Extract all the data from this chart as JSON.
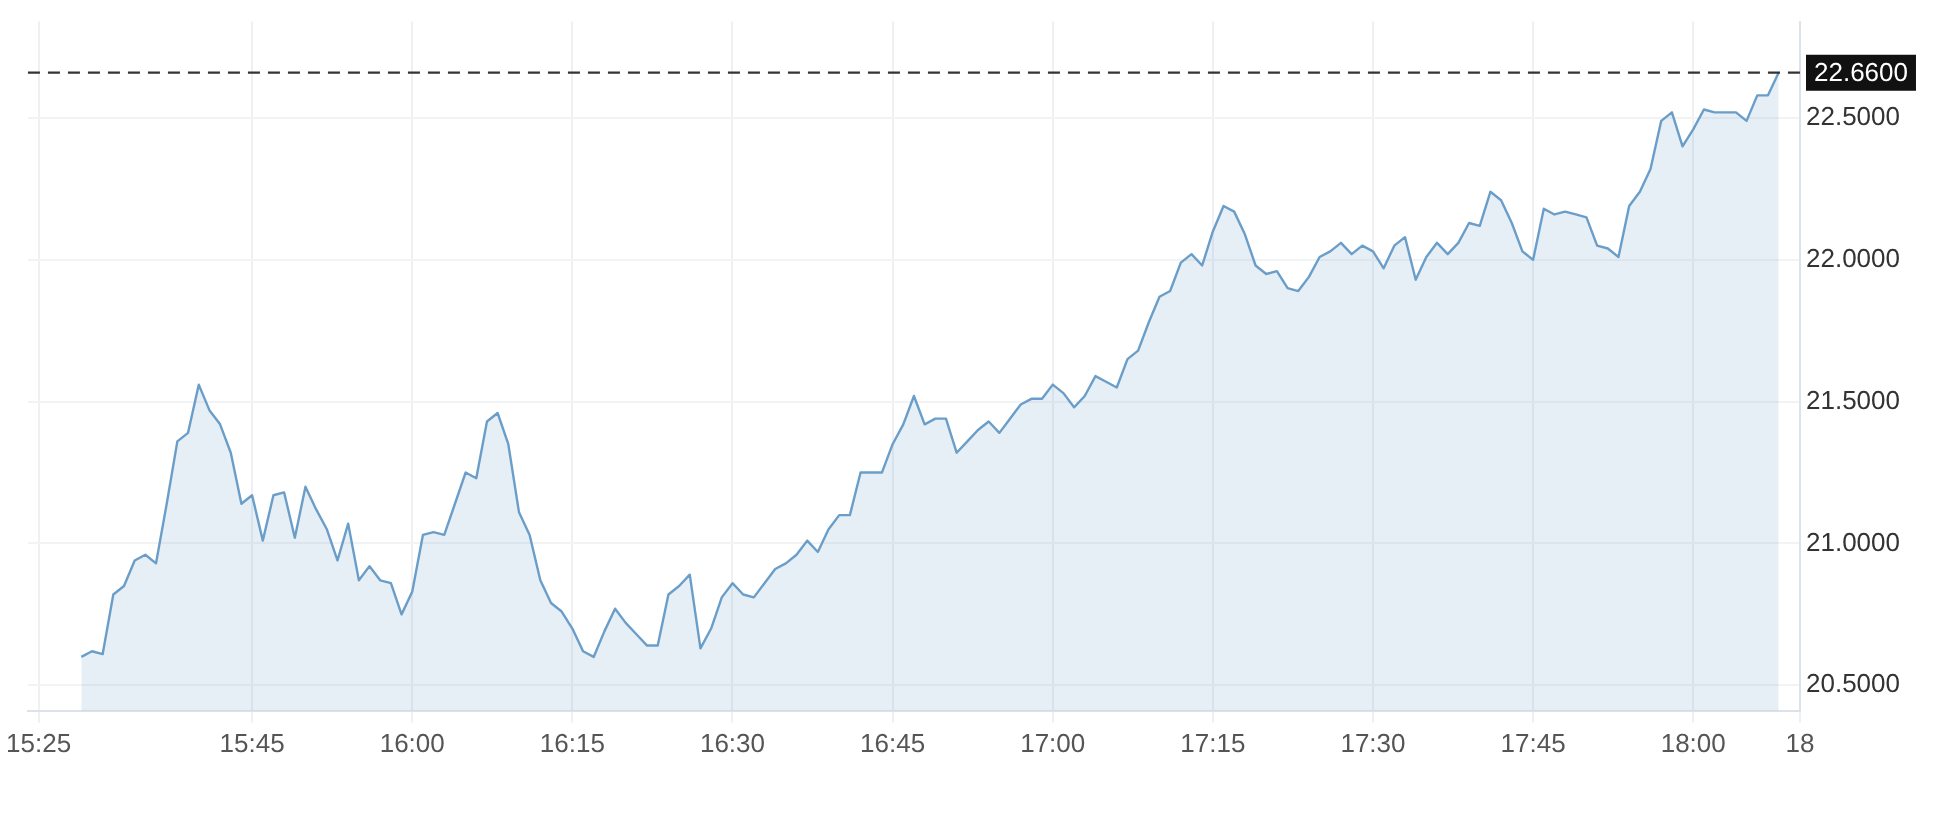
{
  "chart_data": {
    "type": "area",
    "series": [
      {
        "color": "#6a9ec9",
        "x": [
          15.4833,
          15.5,
          15.5167,
          15.5333,
          15.55,
          15.5667,
          15.5833,
          15.6,
          15.6167,
          15.6333,
          15.65,
          15.6667,
          15.6833,
          15.7,
          15.7167,
          15.7333,
          15.75,
          15.7667,
          15.7833,
          15.8,
          15.8167,
          15.8333,
          15.85,
          15.8667,
          15.8833,
          15.9,
          15.9167,
          15.9333,
          15.95,
          15.9667,
          15.9833,
          16.0,
          16.0167,
          16.0333,
          16.05,
          16.0667,
          16.0833,
          16.1,
          16.1167,
          16.1333,
          16.15,
          16.1667,
          16.1833,
          16.2,
          16.2167,
          16.2333,
          16.25,
          16.2667,
          16.2833,
          16.3,
          16.3167,
          16.3333,
          16.35,
          16.3667,
          16.3833,
          16.4,
          16.4167,
          16.4333,
          16.45,
          16.4667,
          16.4833,
          16.5,
          16.5167,
          16.5333,
          16.55,
          16.5667,
          16.5833,
          16.6,
          16.6167,
          16.6333,
          16.65,
          16.6667,
          16.6833,
          16.7,
          16.7167,
          16.7333,
          16.75,
          16.7667,
          16.7833,
          16.8,
          16.8167,
          16.8333,
          16.85,
          16.8667,
          16.8833,
          16.9,
          16.9167,
          16.9333,
          16.95,
          16.9667,
          16.9833,
          17.0,
          17.0167,
          17.0333,
          17.05,
          17.0667,
          17.0833,
          17.1,
          17.1167,
          17.1333,
          17.15,
          17.1667,
          17.1833,
          17.2,
          17.2167,
          17.2333,
          17.25,
          17.2667,
          17.2833,
          17.3,
          17.3167,
          17.3333,
          17.35,
          17.3667,
          17.3833,
          17.4,
          17.4167,
          17.4333,
          17.45,
          17.4667,
          17.4833,
          17.5,
          17.5167,
          17.5333,
          17.55,
          17.5667,
          17.5833,
          17.6,
          17.6167,
          17.6333,
          17.65,
          17.6667,
          17.6833,
          17.7,
          17.7167,
          17.7333,
          17.75,
          17.7667,
          17.7833,
          17.8,
          17.8167,
          17.8333,
          17.85,
          17.8667,
          17.8833,
          17.9,
          17.9167,
          17.9333,
          17.95,
          17.9667,
          17.9833,
          18.0,
          18.0167,
          18.0333,
          18.05,
          18.0667,
          18.0833,
          18.1,
          18.1167,
          18.1333
        ],
        "values": [
          20.6,
          20.62,
          20.61,
          20.82,
          20.85,
          20.94,
          20.96,
          20.93,
          21.14,
          21.36,
          21.39,
          21.56,
          21.47,
          21.42,
          21.32,
          21.14,
          21.17,
          21.01,
          21.17,
          21.18,
          21.02,
          21.2,
          21.12,
          21.05,
          20.94,
          21.07,
          20.87,
          20.92,
          20.87,
          20.86,
          20.75,
          20.83,
          21.03,
          21.04,
          21.03,
          21.14,
          21.25,
          21.23,
          21.43,
          21.46,
          21.35,
          21.11,
          21.03,
          20.87,
          20.79,
          20.76,
          20.7,
          20.62,
          20.6,
          20.69,
          20.77,
          20.72,
          20.68,
          20.64,
          20.64,
          20.82,
          20.85,
          20.89,
          20.63,
          20.7,
          20.81,
          20.86,
          20.82,
          20.81,
          20.86,
          20.91,
          20.93,
          20.96,
          21.01,
          20.97,
          21.05,
          21.1,
          21.1,
          21.25,
          21.25,
          21.25,
          21.35,
          21.42,
          21.52,
          21.42,
          21.44,
          21.44,
          21.32,
          21.36,
          21.4,
          21.43,
          21.39,
          21.44,
          21.49,
          21.51,
          21.51,
          21.56,
          21.53,
          21.48,
          21.52,
          21.59,
          21.57,
          21.55,
          21.65,
          21.68,
          21.78,
          21.87,
          21.89,
          21.99,
          22.02,
          21.98,
          22.1,
          22.19,
          22.17,
          22.09,
          21.98,
          21.95,
          21.96,
          21.9,
          21.89,
          21.94,
          22.01,
          22.03,
          22.06,
          22.02,
          22.05,
          22.03,
          21.97,
          22.05,
          22.08,
          21.93,
          22.01,
          22.06,
          22.02,
          22.06,
          22.13,
          22.12,
          22.24,
          22.21,
          22.13,
          22.03,
          22.0,
          22.18,
          22.16,
          22.17,
          22.16,
          22.15,
          22.05,
          22.04,
          22.01,
          22.19,
          22.24,
          22.32,
          22.49,
          22.52,
          22.4,
          22.46,
          22.53,
          22.52,
          22.52,
          22.52,
          22.49,
          22.58,
          22.58,
          22.66
        ]
      }
    ],
    "xlim": [
      15.4,
      18.1667
    ],
    "xticks": [
      {
        "value": 15.4167,
        "label": "15:25"
      },
      {
        "value": 15.75,
        "label": "15:45"
      },
      {
        "value": 16.0,
        "label": "16:00"
      },
      {
        "value": 16.25,
        "label": "16:15"
      },
      {
        "value": 16.5,
        "label": "16:30"
      },
      {
        "value": 16.75,
        "label": "16:45"
      },
      {
        "value": 17.0,
        "label": "17:00"
      },
      {
        "value": 17.25,
        "label": "17:15"
      },
      {
        "value": 17.5,
        "label": "17:30"
      },
      {
        "value": 17.75,
        "label": "17:45"
      },
      {
        "value": 18.0,
        "label": "18:00"
      },
      {
        "value": 18.1667,
        "label": "18"
      }
    ],
    "ylim": [
      20.41,
      22.84
    ],
    "yticks": [
      {
        "value": 20.5,
        "label": "20.5000"
      },
      {
        "value": 21.0,
        "label": "21.0000"
      },
      {
        "value": 21.5,
        "label": "21.5000"
      },
      {
        "value": 22.0,
        "label": "22.0000"
      },
      {
        "value": 22.5,
        "label": "22.5000"
      }
    ],
    "ref_lines": [
      {
        "axis": "y",
        "value": 22.66,
        "label": "22.6600",
        "color": "#333333",
        "line_style": "dashed"
      }
    ],
    "grid": true,
    "legend": false,
    "marker": "none",
    "line_style": "solid"
  }
}
